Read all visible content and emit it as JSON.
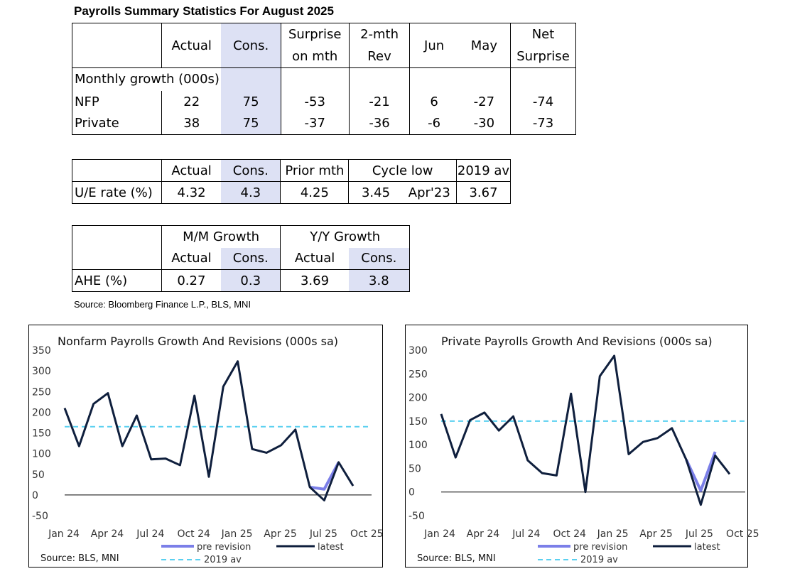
{
  "title": "Payrolls Summary Statistics For August 2025",
  "table1": {
    "headers": {
      "actual": "Actual",
      "cons": "Cons.",
      "surprise1": "Surprise",
      "surprise2": "on mth",
      "rev1": "2-mth",
      "rev2": "Rev",
      "jun": "Jun",
      "may": "May",
      "net1": "Net",
      "net2": "Surprise"
    },
    "section_label": "Monthly growth (000s)",
    "rows": [
      {
        "label": "NFP",
        "actual": "22",
        "cons": "75",
        "surprise": "-53",
        "rev": "-21",
        "jun": "6",
        "may": "-27",
        "net": "-74"
      },
      {
        "label": "Private",
        "actual": "38",
        "cons": "75",
        "surprise": "-37",
        "rev": "-36",
        "jun": "-6",
        "may": "-30",
        "net": "-73"
      }
    ]
  },
  "table2": {
    "headers": {
      "actual": "Actual",
      "cons": "Cons.",
      "prior": "Prior mth",
      "cycle_low": "Cycle low",
      "av2019": "2019 av"
    },
    "row": {
      "label": "U/E rate (%)",
      "actual": "4.32",
      "cons": "4.3",
      "prior": "4.25",
      "low_value": "3.45",
      "low_date": "Apr'23",
      "av2019": "3.67"
    }
  },
  "table3": {
    "groups": {
      "mm": "M/M Growth",
      "yy": "Y/Y Growth"
    },
    "subheaders": {
      "mm_actual": "Actual",
      "mm_cons": "Cons.",
      "yy_actual": "Actual",
      "yy_cons": "Cons."
    },
    "row": {
      "label": "AHE (%)",
      "mm_actual": "0.27",
      "mm_cons": "0.3",
      "yy_actual": "3.69",
      "yy_cons": "3.8"
    }
  },
  "source_text": "Source: Bloomberg Finance L.P., BLS, MNI",
  "chart_data": [
    {
      "type": "line",
      "title": "Nonfarm Payrolls Growth And Revisions (000s sa)",
      "x_tick_labels": [
        "Jan 24",
        "Apr 24",
        "Jul 24",
        "Oct 24",
        "Jan 25",
        "Apr 25",
        "Jul 25",
        "Oct 25"
      ],
      "y_ticks": [
        "350",
        "300",
        "250",
        "200",
        "150",
        "100",
        "50",
        "0",
        "-50"
      ],
      "ylim": [
        -50,
        350
      ],
      "x_count": 22,
      "series": [
        {
          "name": "latest",
          "color": "#0f1f3d",
          "values": [
            210,
            118,
            220,
            246,
            118,
            192,
            86,
            88,
            72,
            240,
            44,
            262,
            323,
            111,
            102,
            120,
            158,
            19,
            -13,
            79,
            22
          ]
        },
        {
          "name": "pre revision",
          "color": "#7b7fe8",
          "start_index": 17,
          "values": [
            19,
            14,
            79
          ]
        }
      ],
      "reference_line": {
        "name": "2019 av",
        "value": 165,
        "color": "#5ad0f0"
      },
      "legend": [
        "pre revision",
        "latest",
        "2019 av"
      ],
      "source": "Source: BLS, MNI"
    },
    {
      "type": "line",
      "title": "Private Payrolls Growth And Revisions (000s sa)",
      "x_tick_labels": [
        "Jan 24",
        "Apr 24",
        "Jul 24",
        "Oct 24",
        "Jan 25",
        "Apr 25",
        "Jul 25",
        "Oct 25"
      ],
      "y_ticks": [
        "300",
        "250",
        "200",
        "150",
        "100",
        "50",
        "0",
        "-50"
      ],
      "ylim": [
        -50,
        300
      ],
      "x_count": 22,
      "series": [
        {
          "name": "latest",
          "color": "#0f1f3d",
          "values": [
            165,
            73,
            152,
            168,
            130,
            160,
            67,
            40,
            35,
            208,
            0,
            245,
            288,
            80,
            106,
            114,
            135,
            68,
            -27,
            77,
            38
          ]
        },
        {
          "name": "pre revision",
          "color": "#7b7fe8",
          "start_index": 17,
          "values": [
            68,
            3,
            85
          ]
        }
      ],
      "reference_line": {
        "name": "2019 av",
        "value": 150,
        "color": "#5ad0f0"
      },
      "legend": [
        "pre revision",
        "latest",
        "2019 av"
      ],
      "source": "Source: BLS, MNI"
    }
  ]
}
